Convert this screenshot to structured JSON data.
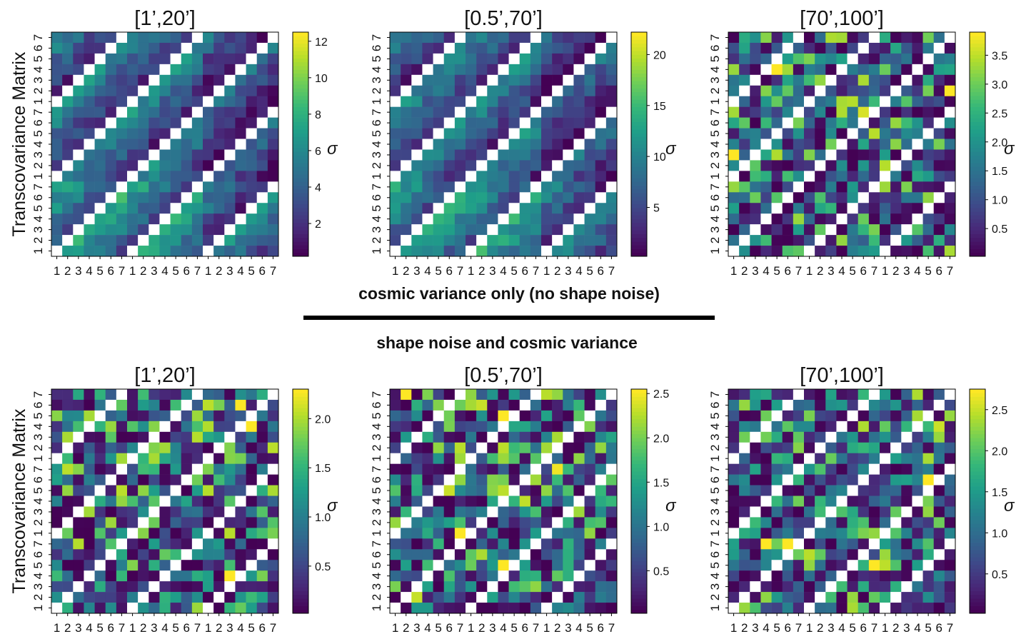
{
  "captions": {
    "top": "cosmic variance only (no shape noise)",
    "bottom": "shape noise and cosmic variance"
  },
  "colormap": [
    "#440154",
    "#482878",
    "#3e4a89",
    "#31688e",
    "#26828e",
    "#1f9e89",
    "#35b779",
    "#6ece58",
    "#b5de2b",
    "#fde725"
  ],
  "chart_data": [
    {
      "type": "heatmap",
      "row": "cosmic variance only (no shape noise)",
      "title": "[1’,20’]",
      "ylabel": "Transcovariance Matrix",
      "tick_labels": [
        "1",
        "2",
        "3",
        "4",
        "5",
        "6",
        "7",
        "1",
        "2",
        "3",
        "4",
        "5",
        "6",
        "7",
        "1",
        "2",
        "3",
        "4",
        "5",
        "6",
        "7"
      ],
      "colorbar_label": "σ",
      "colorbar_ticks": [
        2,
        4,
        6,
        8,
        10,
        12
      ],
      "vmin": 0.2,
      "vmax": 12.5,
      "seed": 11,
      "style": "gradient"
    },
    {
      "type": "heatmap",
      "row": "cosmic variance only (no shape noise)",
      "title": "[0.5’,70’]",
      "ylabel": "",
      "tick_labels": [
        "1",
        "2",
        "3",
        "4",
        "5",
        "6",
        "7",
        "1",
        "2",
        "3",
        "4",
        "5",
        "6",
        "7",
        "1",
        "2",
        "3",
        "4",
        "5",
        "6",
        "7"
      ],
      "colorbar_label": "σ",
      "colorbar_ticks": [
        5,
        10,
        15,
        20
      ],
      "vmin": 0.2,
      "vmax": 22.2,
      "seed": 23,
      "style": "gradient"
    },
    {
      "type": "heatmap",
      "row": "cosmic variance only (no shape noise)",
      "title": "[70’,100’]",
      "ylabel": "",
      "tick_labels": [
        "1",
        "2",
        "3",
        "4",
        "5",
        "6",
        "7",
        "1",
        "2",
        "3",
        "4",
        "5",
        "6",
        "7",
        "1",
        "2",
        "3",
        "4",
        "5",
        "6",
        "7"
      ],
      "colorbar_label": "σ",
      "colorbar_ticks": [
        0.5,
        1.0,
        1.5,
        2.0,
        2.5,
        3.0,
        3.5
      ],
      "vmin": 0.02,
      "vmax": 3.9,
      "seed": 37,
      "style": "noise"
    },
    {
      "type": "heatmap",
      "row": "shape noise and cosmic variance",
      "title": "[1’,20’]",
      "ylabel": "Transcovariance Matrix",
      "tick_labels": [
        "1",
        "2",
        "3",
        "4",
        "5",
        "6",
        "7",
        "1",
        "2",
        "3",
        "4",
        "5",
        "6",
        "7",
        "1",
        "2",
        "3",
        "4",
        "5",
        "6",
        "7"
      ],
      "colorbar_label": "σ",
      "colorbar_ticks": [
        0.5,
        1.0,
        1.5,
        2.0
      ],
      "vmin": 0.02,
      "vmax": 2.3,
      "seed": 41,
      "style": "noise"
    },
    {
      "type": "heatmap",
      "row": "shape noise and cosmic variance",
      "title": "[0.5’,70’]",
      "ylabel": "",
      "tick_labels": [
        "1",
        "2",
        "3",
        "4",
        "5",
        "6",
        "7",
        "1",
        "2",
        "3",
        "4",
        "5",
        "6",
        "7",
        "1",
        "2",
        "3",
        "4",
        "5",
        "6",
        "7"
      ],
      "colorbar_label": "σ",
      "colorbar_ticks": [
        0.5,
        1.0,
        1.5,
        2.0,
        2.5
      ],
      "vmin": 0.02,
      "vmax": 2.55,
      "seed": 53,
      "style": "noise"
    },
    {
      "type": "heatmap",
      "row": "shape noise and cosmic variance",
      "title": "[70’,100’]",
      "ylabel": "",
      "tick_labels": [
        "1",
        "2",
        "3",
        "4",
        "5",
        "6",
        "7",
        "1",
        "2",
        "3",
        "4",
        "5",
        "6",
        "7",
        "1",
        "2",
        "3",
        "4",
        "5",
        "6",
        "7"
      ],
      "colorbar_label": "σ",
      "colorbar_ticks": [
        0.5,
        1.0,
        1.5,
        2.0,
        2.5
      ],
      "vmin": 0.02,
      "vmax": 2.75,
      "seed": 67,
      "style": "noise"
    }
  ]
}
